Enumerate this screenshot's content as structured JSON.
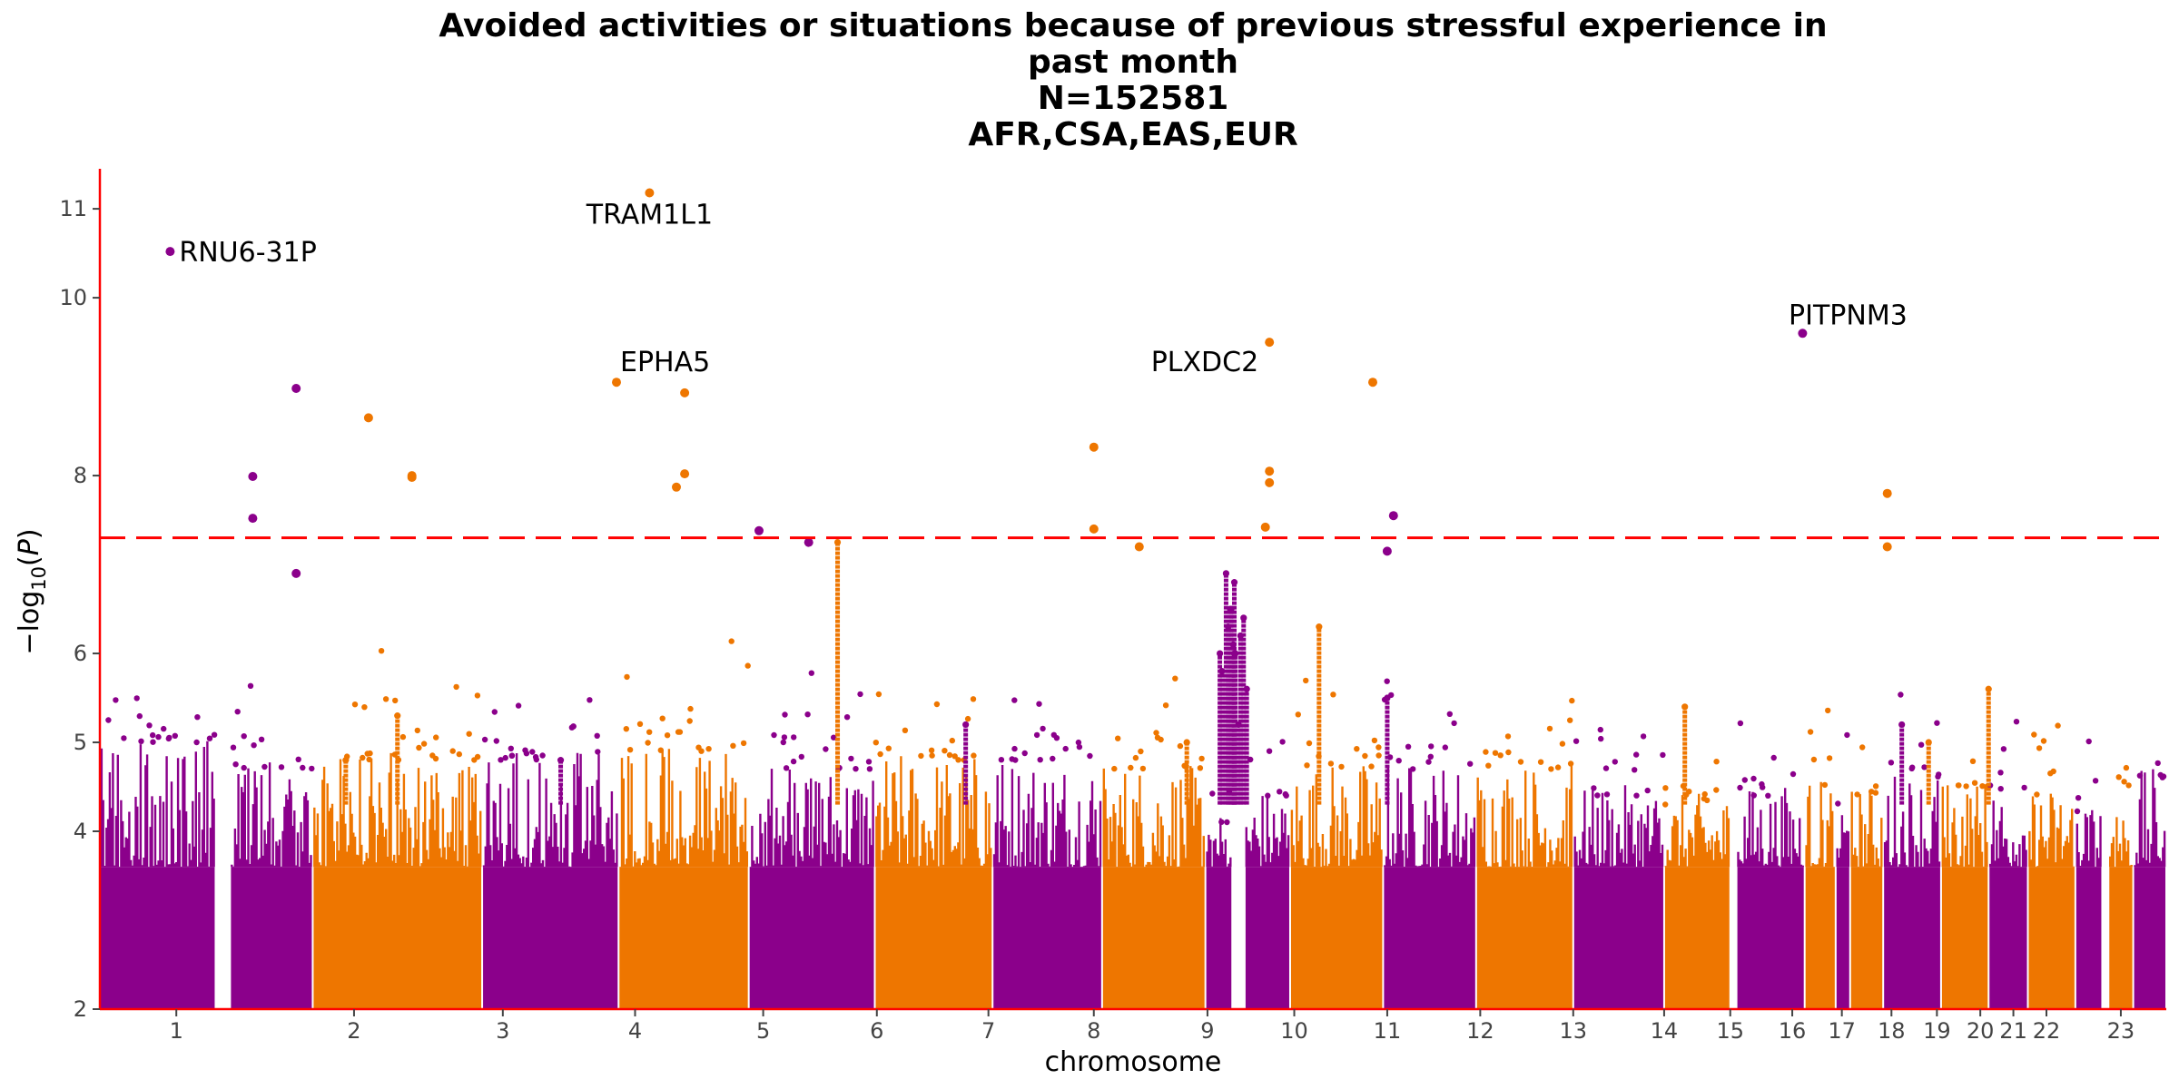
{
  "chart_data": {
    "type": "scatter",
    "subtype": "manhattan",
    "title_lines": [
      "Avoided activities or situations because of previous stressful experience in",
      "past month",
      "N=152581",
      "AFR,CSA,EAS,EUR"
    ],
    "xlabel": "chromosome",
    "ylabel": "-log10(P)",
    "ylim": [
      2,
      11.45
    ],
    "yticks": [
      2,
      4,
      5,
      6,
      8,
      10,
      11
    ],
    "significance_threshold": 7.3,
    "colors": {
      "odd": "#8B008B",
      "even": "#EE7600",
      "threshold": "#FF0000",
      "axis": "#FF0000"
    },
    "chromosomes": [
      {
        "label": "1",
        "start": 0,
        "end": 5.6,
        "color": "odd",
        "ceil": 5.2
      },
      {
        "label": "",
        "start": 6.3,
        "end": 10.3,
        "color": "odd",
        "ceil": 4.9
      },
      {
        "label": "2",
        "start": 10.3,
        "end": 18.5,
        "color": "even",
        "ceil": 5.0
      },
      {
        "label": "3",
        "start": 18.5,
        "end": 25.1,
        "color": "odd",
        "ceil": 5.0
      },
      {
        "label": "4",
        "start": 25.1,
        "end": 31.4,
        "color": "even",
        "ceil": 5.1
      },
      {
        "label": "5",
        "start": 31.4,
        "end": 37.5,
        "color": "odd",
        "ceil": 4.9
      },
      {
        "label": "6",
        "start": 37.5,
        "end": 43.2,
        "color": "even",
        "ceil": 5.0
      },
      {
        "label": "7",
        "start": 43.2,
        "end": 48.5,
        "color": "odd",
        "ceil": 5.0
      },
      {
        "label": "8",
        "start": 48.5,
        "end": 53.5,
        "color": "even",
        "ceil": 4.9
      },
      {
        "label": "",
        "start": 53.5,
        "end": 54.8,
        "color": "odd",
        "ceil": 4.3
      },
      {
        "label": "9",
        "start": 55.4,
        "end": 57.6,
        "color": "odd",
        "ceil": 4.6
      },
      {
        "label": "10",
        "start": 57.6,
        "end": 62.1,
        "color": "even",
        "ceil": 4.9
      },
      {
        "label": "11",
        "start": 62.1,
        "end": 66.6,
        "color": "odd",
        "ceil": 4.9
      },
      {
        "label": "12",
        "start": 66.6,
        "end": 71.3,
        "color": "even",
        "ceil": 4.9
      },
      {
        "label": "13",
        "start": 71.3,
        "end": 75.7,
        "color": "odd",
        "ceil": 4.6
      },
      {
        "label": "14",
        "start": 75.7,
        "end": 78.9,
        "color": "even",
        "ceil": 4.5
      },
      {
        "label": "15",
        "start": 79.2,
        "end": 82.5,
        "color": "odd",
        "ceil": 4.6
      },
      {
        "label": "16",
        "start": 82.5,
        "end": 84.0,
        "color": "even",
        "ceil": 4.7
      },
      {
        "label": "",
        "start": 84.0,
        "end": 84.7,
        "color": "odd",
        "ceil": 4.5
      },
      {
        "label": "",
        "start": 84.7,
        "end": 86.3,
        "color": "even",
        "ceil": 4.6
      },
      {
        "label": "17",
        "start": 86.3,
        "end": 89.1,
        "color": "odd",
        "ceil": 4.8
      },
      {
        "label": "18",
        "start": 89.1,
        "end": 91.4,
        "color": "even",
        "ceil": 4.7
      },
      {
        "label": "19",
        "start": 91.4,
        "end": 93.3,
        "color": "odd",
        "ceil": 4.6
      },
      {
        "label": "20",
        "start": 93.3,
        "end": 95.6,
        "color": "even",
        "ceil": 4.6
      },
      {
        "label": "21",
        "start": 95.6,
        "end": 96.9,
        "color": "odd",
        "ceil": 4.4
      },
      {
        "label": "22",
        "start": 97.2,
        "end": 98.4,
        "color": "even",
        "ceil": 4.7
      },
      {
        "label": "23",
        "start": 98.4,
        "end": 100,
        "color": "odd",
        "ceil": 4.8
      }
    ],
    "xticks": [
      {
        "label": "1",
        "x": 3.7
      },
      {
        "label": "2",
        "x": 12.3
      },
      {
        "label": "3",
        "x": 19.5
      },
      {
        "label": "4",
        "x": 25.9
      },
      {
        "label": "5",
        "x": 32.1
      },
      {
        "label": "6",
        "x": 37.6
      },
      {
        "label": "7",
        "x": 43.0
      },
      {
        "label": "8",
        "x": 48.1
      },
      {
        "label": "9",
        "x": 53.6
      },
      {
        "label": "10",
        "x": 57.8
      },
      {
        "label": "11",
        "x": 62.3
      },
      {
        "label": "12",
        "x": 66.8
      },
      {
        "label": "13",
        "x": 71.3
      },
      {
        "label": "14",
        "x": 75.7
      },
      {
        "label": "15",
        "x": 78.9
      },
      {
        "label": "16",
        "x": 81.9
      },
      {
        "label": "17",
        "x": 84.3
      },
      {
        "label": "18",
        "x": 86.7
      },
      {
        "label": "19",
        "x": 88.9
      },
      {
        "label": "20",
        "x": 91.0
      },
      {
        "label": "21",
        "x": 92.6
      },
      {
        "label": "22",
        "x": 94.2
      },
      {
        "label": "23",
        "x": 97.8
      }
    ],
    "towers": [
      {
        "x": 35.7,
        "to": 7.25,
        "color": "even"
      },
      {
        "x": 54.2,
        "to": 6.0,
        "color": "odd"
      },
      {
        "x": 54.3,
        "to": 5.8,
        "color": "odd"
      },
      {
        "x": 54.5,
        "to": 6.9,
        "color": "odd"
      },
      {
        "x": 54.6,
        "to": 6.3,
        "color": "odd"
      },
      {
        "x": 54.7,
        "to": 6.5,
        "color": "odd"
      },
      {
        "x": 54.9,
        "to": 6.8,
        "color": "odd"
      },
      {
        "x": 54.95,
        "to": 6.0,
        "color": "odd"
      },
      {
        "x": 55.1,
        "to": 5.2,
        "color": "odd"
      },
      {
        "x": 55.2,
        "to": 6.2,
        "color": "odd"
      },
      {
        "x": 55.35,
        "to": 6.4,
        "color": "odd"
      },
      {
        "x": 55.5,
        "to": 5.6,
        "color": "odd"
      },
      {
        "x": 54.75,
        "to": 6.5,
        "color": "odd"
      },
      {
        "x": 54.85,
        "to": 6.1,
        "color": "odd"
      },
      {
        "x": 54.9,
        "to": 6.0,
        "color": "odd"
      },
      {
        "x": 59.0,
        "to": 6.3,
        "color": "even"
      },
      {
        "x": 62.3,
        "to": 5.5,
        "color": "odd"
      },
      {
        "x": 76.7,
        "to": 5.4,
        "color": "even"
      },
      {
        "x": 87.2,
        "to": 5.2,
        "color": "odd"
      },
      {
        "x": 91.4,
        "to": 5.6,
        "color": "even"
      },
      {
        "x": 88.5,
        "to": 5.0,
        "color": "even"
      },
      {
        "x": 52.6,
        "to": 5.0,
        "color": "even"
      },
      {
        "x": 11.9,
        "to": 4.8,
        "color": "even"
      },
      {
        "x": 14.4,
        "to": 5.3,
        "color": "even"
      },
      {
        "x": 22.3,
        "to": 4.8,
        "color": "odd"
      },
      {
        "x": 41.9,
        "to": 5.2,
        "color": "odd"
      }
    ],
    "points": [
      {
        "x": 3.4,
        "y": 10.52,
        "color": "odd"
      },
      {
        "x": 26.6,
        "y": 11.18,
        "color": "even"
      },
      {
        "x": 25.0,
        "y": 9.05,
        "color": "even"
      },
      {
        "x": 28.3,
        "y": 8.93,
        "color": "even"
      },
      {
        "x": 28.3,
        "y": 8.02,
        "color": "even"
      },
      {
        "x": 27.9,
        "y": 7.87,
        "color": "even"
      },
      {
        "x": 9.5,
        "y": 8.98,
        "color": "odd"
      },
      {
        "x": 7.4,
        "y": 7.99,
        "color": "odd"
      },
      {
        "x": 7.4,
        "y": 7.52,
        "color": "odd"
      },
      {
        "x": 9.5,
        "y": 6.9,
        "color": "odd"
      },
      {
        "x": 13.0,
        "y": 8.65,
        "color": "even"
      },
      {
        "x": 15.1,
        "y": 8.0,
        "color": "even"
      },
      {
        "x": 15.1,
        "y": 7.98,
        "color": "even"
      },
      {
        "x": 31.9,
        "y": 7.38,
        "color": "odd"
      },
      {
        "x": 34.3,
        "y": 7.25,
        "color": "odd"
      },
      {
        "x": 48.1,
        "y": 8.32,
        "color": "even"
      },
      {
        "x": 48.1,
        "y": 7.4,
        "color": "even"
      },
      {
        "x": 50.3,
        "y": 7.2,
        "color": "even"
      },
      {
        "x": 56.6,
        "y": 9.5,
        "color": "even"
      },
      {
        "x": 56.6,
        "y": 8.05,
        "color": "even"
      },
      {
        "x": 56.6,
        "y": 7.92,
        "color": "even"
      },
      {
        "x": 56.4,
        "y": 7.42,
        "color": "even"
      },
      {
        "x": 61.6,
        "y": 9.05,
        "color": "even"
      },
      {
        "x": 62.6,
        "y": 7.55,
        "color": "odd"
      },
      {
        "x": 62.3,
        "y": 7.15,
        "color": "odd"
      },
      {
        "x": 82.4,
        "y": 9.6,
        "color": "odd"
      },
      {
        "x": 86.5,
        "y": 7.8,
        "color": "even"
      },
      {
        "x": 86.5,
        "y": 7.2,
        "color": "even"
      }
    ],
    "annotations": [
      {
        "label": "RNU6-31P",
        "x": 3.4,
        "y": 10.52,
        "anchor": "start",
        "dx": 10,
        "dy": 11
      },
      {
        "label": "TRAM1L1",
        "x": 26.6,
        "y": 11.18,
        "anchor": "middle",
        "dx": 0,
        "dy": 34
      },
      {
        "label": "EPHA5",
        "x": 25.0,
        "y": 9.05,
        "anchor": "start",
        "dx": 4,
        "dy": -12
      },
      {
        "label": "PLXDC2",
        "x": 56.6,
        "y": 9.5,
        "anchor": "end",
        "dx": -12,
        "dy": 32
      },
      {
        "label": "PITPNM3",
        "x": 82.4,
        "y": 9.6,
        "anchor": "middle",
        "dx": 50,
        "dy": -10
      }
    ]
  }
}
